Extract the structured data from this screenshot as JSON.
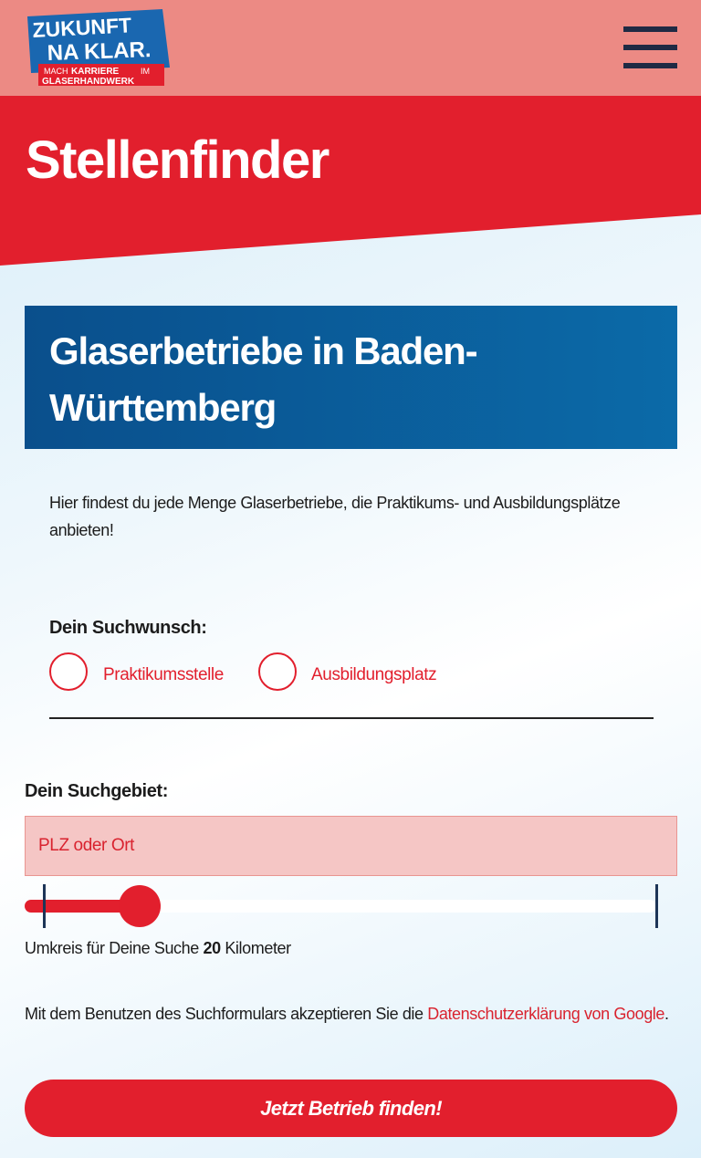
{
  "logo": {
    "line1": "ZUKUNFT",
    "line2": "NA KLAR.",
    "tagline_mach": "MACH",
    "tagline_karriere": "KARRIERE",
    "tagline_im": "IM",
    "tagline_bottom": "GLASERHANDWERK"
  },
  "header": {
    "title": "Stellenfinder"
  },
  "section": {
    "heading": "Glaserbetriebe in Baden-Württemberg",
    "intro": "Hier findest du jede Menge Glaserbetriebe, die Praktikums- und Ausbildungsplätze anbieten!"
  },
  "form": {
    "wish_label": "Dein Suchwunsch:",
    "options": [
      "Praktikumsstelle",
      "Ausbildungsplatz"
    ],
    "area_label": "Dein Suchgebiet:",
    "area_placeholder": "PLZ oder Ort",
    "radius": {
      "prefix": "Umkreis für Deine Suche",
      "value": 20,
      "unit": "Kilometer"
    },
    "consent": {
      "text": "Mit dem Benutzen des Suchformulars akzeptieren Sie die",
      "link": "Datenschutzerklärung von Google",
      "end": "."
    },
    "submit": "Jetzt Betrieb finden!"
  }
}
